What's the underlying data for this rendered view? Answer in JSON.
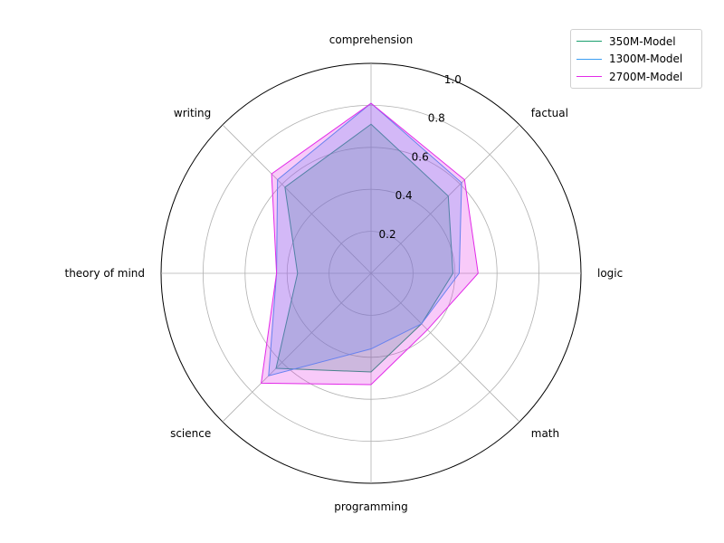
{
  "chart_data": {
    "type": "radar",
    "categories": [
      "comprehension",
      "factual",
      "logic",
      "math",
      "programming",
      "science",
      "theory of mind",
      "writing"
    ],
    "rlim": [
      0,
      1.0
    ],
    "radial_ticks": [
      "0.2",
      "0.4",
      "0.6",
      "0.8",
      "1.0"
    ],
    "radial_tick_values": [
      0.2,
      0.4,
      0.6,
      0.8,
      1.0
    ],
    "grid": true,
    "legend_position": "top-right",
    "series": [
      {
        "name": "350M-Model",
        "color": "#1a9e6e",
        "values": [
          0.71,
          0.52,
          0.39,
          0.34,
          0.47,
          0.64,
          0.35,
          0.58
        ]
      },
      {
        "name": "1300M-Model",
        "color": "#3d9ef2",
        "values": [
          0.81,
          0.61,
          0.42,
          0.34,
          0.36,
          0.69,
          0.45,
          0.63
        ]
      },
      {
        "name": "2700M-Model",
        "color": "#e22ae8",
        "values": [
          0.81,
          0.63,
          0.51,
          0.38,
          0.53,
          0.74,
          0.45,
          0.67
        ]
      }
    ]
  }
}
